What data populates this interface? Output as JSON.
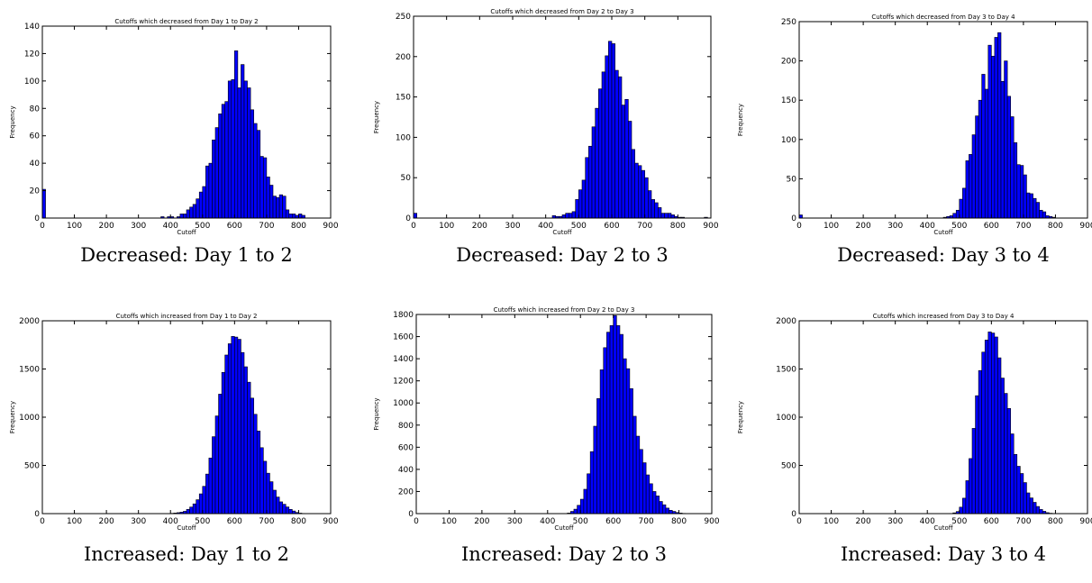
{
  "chart_data": [
    {
      "type": "bar",
      "title": "Cutoffs which decreased from Day 1 to Day 2",
      "xlabel": "Cutoff",
      "ylabel": "Frequency",
      "caption": "Decreased: Day 1 to 2",
      "xlim": [
        0,
        900
      ],
      "ylim": [
        0,
        140
      ],
      "xticks": [
        "0",
        "100",
        "200",
        "300",
        "400",
        "500",
        "600",
        "700",
        "800",
        "900"
      ],
      "yticks": [
        "0",
        "20",
        "40",
        "60",
        "80",
        "100",
        "120",
        "140"
      ],
      "bin_start": 0,
      "bin_width": 10,
      "values": [
        21,
        0,
        0,
        0,
        0,
        0,
        0,
        0,
        0,
        0,
        0,
        0,
        0,
        0,
        0,
        0,
        0,
        0,
        0,
        0,
        0,
        0,
        0,
        0,
        0,
        0,
        0,
        0,
        0,
        0,
        0,
        0,
        0,
        0,
        0,
        0,
        0,
        1,
        0,
        1,
        1,
        0,
        1,
        3,
        3,
        6,
        8,
        10,
        14,
        19,
        23,
        38,
        40,
        57,
        66,
        76,
        83,
        85,
        100,
        101,
        122,
        95,
        112,
        100,
        95,
        79,
        69,
        64,
        45,
        44,
        30,
        24,
        16,
        15,
        17,
        16,
        6,
        3,
        3,
        2,
        3,
        2,
        0,
        0,
        0,
        0,
        0,
        0,
        0,
        0
      ]
    },
    {
      "type": "bar",
      "title": "Cutoffs which decreased from Day 2 to Day 3",
      "xlabel": "Cutoff",
      "ylabel": "Frequency",
      "caption": "Decreased: Day 2 to 3",
      "xlim": [
        0,
        900
      ],
      "ylim": [
        0,
        250
      ],
      "xticks": [
        "0",
        "100",
        "200",
        "300",
        "400",
        "500",
        "600",
        "700",
        "800",
        "900"
      ],
      "yticks": [
        "0",
        "50",
        "100",
        "150",
        "200",
        "250"
      ],
      "bin_start": 0,
      "bin_width": 10,
      "values": [
        6,
        0,
        0,
        0,
        0,
        0,
        0,
        0,
        0,
        0,
        0,
        0,
        0,
        0,
        0,
        0,
        0,
        0,
        0,
        0,
        0,
        0,
        0,
        0,
        0,
        0,
        0,
        0,
        0,
        0,
        0,
        0,
        0,
        0,
        0,
        0,
        0,
        0,
        0,
        0,
        0,
        0,
        3,
        2,
        2,
        4,
        6,
        6,
        8,
        23,
        35,
        47,
        75,
        89,
        113,
        136,
        160,
        181,
        201,
        219,
        216,
        183,
        175,
        140,
        147,
        120,
        85,
        68,
        65,
        59,
        50,
        34,
        23,
        19,
        13,
        6,
        6,
        6,
        4,
        2,
        1,
        1,
        0,
        0,
        0,
        0,
        0,
        0,
        1,
        0
      ]
    },
    {
      "type": "bar",
      "title": "Cutoffs which decreased from Day 3 to Day 4",
      "xlabel": "Cutoff",
      "ylabel": "Frequency",
      "caption": "Decreased: Day 3 to 4",
      "xlim": [
        0,
        900
      ],
      "ylim": [
        0,
        250
      ],
      "xticks": [
        "0",
        "100",
        "200",
        "300",
        "400",
        "500",
        "600",
        "700",
        "800",
        "900"
      ],
      "yticks": [
        "0",
        "50",
        "100",
        "150",
        "200",
        "250"
      ],
      "bin_start": 0,
      "bin_width": 10,
      "values": [
        4,
        0,
        0,
        0,
        0,
        0,
        0,
        0,
        0,
        0,
        0,
        0,
        0,
        0,
        0,
        0,
        0,
        0,
        0,
        0,
        0,
        0,
        0,
        0,
        0,
        0,
        0,
        0,
        0,
        0,
        0,
        0,
        0,
        0,
        0,
        0,
        0,
        0,
        0,
        0,
        0,
        0,
        0,
        0,
        0,
        1,
        2,
        3,
        6,
        10,
        24,
        38,
        73,
        81,
        106,
        130,
        150,
        183,
        164,
        220,
        206,
        230,
        236,
        174,
        200,
        155,
        129,
        96,
        68,
        67,
        55,
        32,
        31,
        25,
        20,
        10,
        8,
        3,
        2,
        1,
        0,
        0,
        0,
        0,
        0,
        0,
        0,
        0,
        0,
        0
      ]
    },
    {
      "type": "bar",
      "title": "Cutoffs which increased from Day 1 to Day 2",
      "xlabel": "Cutoff",
      "ylabel": "Frequency",
      "caption": "Increased: Day 1 to 2",
      "xlim": [
        0,
        900
      ],
      "ylim": [
        0,
        2000
      ],
      "xticks": [
        "0",
        "100",
        "200",
        "300",
        "400",
        "500",
        "600",
        "700",
        "800",
        "900"
      ],
      "yticks": [
        "0",
        "500",
        "1000",
        "1500",
        "2000"
      ],
      "bin_start": 0,
      "bin_width": 10,
      "values": [
        0,
        0,
        0,
        0,
        0,
        0,
        0,
        0,
        0,
        0,
        0,
        0,
        0,
        0,
        0,
        0,
        0,
        0,
        0,
        0,
        0,
        0,
        0,
        0,
        0,
        0,
        0,
        0,
        0,
        0,
        0,
        0,
        0,
        0,
        0,
        0,
        0,
        0,
        0,
        0,
        3,
        6,
        10,
        15,
        24,
        44,
        68,
        101,
        144,
        205,
        283,
        410,
        577,
        798,
        1013,
        1239,
        1465,
        1645,
        1762,
        1838,
        1831,
        1808,
        1671,
        1523,
        1363,
        1198,
        1030,
        857,
        684,
        543,
        419,
        331,
        243,
        172,
        122,
        97,
        69,
        44,
        27,
        12,
        5,
        2,
        0,
        0,
        0,
        0,
        0,
        0,
        0,
        0
      ]
    },
    {
      "type": "bar",
      "title": "Cutoffs which increased from Day 2 to Day 3",
      "xlabel": "Cutoff",
      "ylabel": "Frequency",
      "caption": "Increased: Day 2 to 3",
      "xlim": [
        0,
        900
      ],
      "ylim": [
        0,
        1800
      ],
      "xticks": [
        "0",
        "100",
        "200",
        "300",
        "400",
        "500",
        "600",
        "700",
        "800",
        "900"
      ],
      "yticks": [
        "0",
        "200",
        "400",
        "600",
        "800",
        "1000",
        "1200",
        "1400",
        "1600",
        "1800"
      ],
      "bin_start": 0,
      "bin_width": 10,
      "values": [
        0,
        0,
        0,
        0,
        0,
        0,
        0,
        0,
        0,
        0,
        0,
        0,
        0,
        0,
        0,
        0,
        0,
        0,
        0,
        0,
        0,
        0,
        0,
        0,
        0,
        0,
        0,
        0,
        0,
        0,
        0,
        0,
        0,
        0,
        0,
        0,
        0,
        0,
        0,
        0,
        0,
        0,
        0,
        0,
        0,
        0,
        5,
        20,
        40,
        75,
        130,
        220,
        360,
        560,
        790,
        1040,
        1300,
        1500,
        1640,
        1700,
        1790,
        1700,
        1620,
        1400,
        1310,
        1130,
        880,
        700,
        580,
        460,
        350,
        270,
        200,
        160,
        110,
        80,
        50,
        30,
        20,
        10,
        5,
        2,
        0,
        0,
        0,
        0,
        0,
        0,
        0,
        0
      ]
    },
    {
      "type": "bar",
      "title": "Cutoffs which increased from Day 3 to Day 4",
      "xlabel": "Cutoff",
      "ylabel": "Frequency",
      "caption": "Increased: Day 3 to 4",
      "xlim": [
        0,
        900
      ],
      "ylim": [
        0,
        2000
      ],
      "xticks": [
        "0",
        "100",
        "200",
        "300",
        "400",
        "500",
        "600",
        "700",
        "800",
        "900"
      ],
      "yticks": [
        "0",
        "500",
        "1000",
        "1500",
        "2000"
      ],
      "bin_start": 0,
      "bin_width": 10,
      "values": [
        0,
        0,
        0,
        0,
        0,
        0,
        0,
        0,
        0,
        0,
        0,
        0,
        0,
        0,
        0,
        0,
        0,
        0,
        0,
        0,
        0,
        0,
        0,
        0,
        0,
        0,
        0,
        0,
        0,
        0,
        0,
        0,
        0,
        0,
        0,
        0,
        0,
        0,
        0,
        0,
        0,
        0,
        0,
        0,
        0,
        0,
        0,
        2,
        8,
        22,
        67,
        160,
        342,
        571,
        884,
        1223,
        1484,
        1675,
        1800,
        1885,
        1873,
        1832,
        1616,
        1406,
        1247,
        1091,
        827,
        614,
        491,
        416,
        322,
        215,
        163,
        117,
        74,
        43,
        24,
        10,
        4,
        2,
        0,
        0,
        0,
        0,
        0,
        0,
        0,
        0,
        0,
        0
      ]
    }
  ],
  "colors": {
    "bar_fill": "#0000ff",
    "bar_edge": "#000000"
  }
}
